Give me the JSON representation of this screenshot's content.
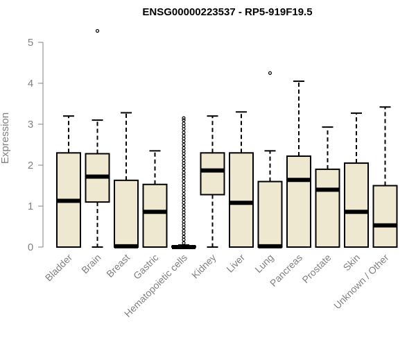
{
  "chart_data": {
    "type": "boxplot",
    "title": "ENSG00000223537 - RP5-919F19.5",
    "xlabel": "",
    "ylabel": "Expression",
    "ylim": [
      0,
      5.2
    ],
    "yticks": [
      0,
      1,
      2,
      3,
      4,
      5
    ],
    "box_fill": "#EEE8D0",
    "categories": [
      "Bladder",
      "Brain",
      "Breast",
      "Gastric",
      "Hematopoietic cells",
      "Kidney",
      "Liver",
      "Lung",
      "Pancreas",
      "Prostate",
      "Skin",
      "Unknown / Other"
    ],
    "boxes": [
      {
        "name": "Bladder",
        "whisker_low": 0,
        "q1": 0,
        "median": 1.13,
        "q3": 2.3,
        "whisker_high": 3.2,
        "outliers": []
      },
      {
        "name": "Brain",
        "whisker_low": 0,
        "q1": 1.1,
        "median": 1.72,
        "q3": 2.28,
        "whisker_high": 3.1,
        "outliers": [
          5.28
        ]
      },
      {
        "name": "Breast",
        "whisker_low": 0,
        "q1": 0,
        "median": 0.02,
        "q3": 1.63,
        "whisker_high": 3.28,
        "outliers": []
      },
      {
        "name": "Gastric",
        "whisker_low": 0,
        "q1": 0,
        "median": 0.86,
        "q3": 1.53,
        "whisker_high": 2.35,
        "outliers": []
      },
      {
        "name": "Hematopoietic cells",
        "whisker_low": 0,
        "q1": 0,
        "median": 0,
        "q3": 0.02,
        "whisker_high": 0.05,
        "outliers": [
          0.1,
          0.18,
          0.25,
          0.33,
          0.4,
          0.48,
          0.55,
          0.62,
          0.7,
          0.78,
          0.85,
          0.92,
          1.0,
          1.08,
          1.15,
          1.22,
          1.3,
          1.38,
          1.45,
          1.52,
          1.6,
          1.68,
          1.75,
          1.82,
          1.9,
          1.98,
          2.05,
          2.12,
          2.2,
          2.28,
          2.35,
          2.42,
          2.5,
          2.58,
          2.65,
          2.72,
          2.8,
          2.88,
          2.95,
          3.02,
          3.1,
          3.15
        ]
      },
      {
        "name": "Kidney",
        "whisker_low": 0,
        "q1": 1.28,
        "median": 1.87,
        "q3": 2.3,
        "whisker_high": 3.2,
        "outliers": []
      },
      {
        "name": "Liver",
        "whisker_low": 0,
        "q1": 0,
        "median": 1.08,
        "q3": 2.3,
        "whisker_high": 3.3,
        "outliers": []
      },
      {
        "name": "Lung",
        "whisker_low": 0,
        "q1": 0,
        "median": 0.02,
        "q3": 1.6,
        "whisker_high": 2.35,
        "outliers": [
          4.25
        ]
      },
      {
        "name": "Pancreas",
        "whisker_low": 0,
        "q1": 0,
        "median": 1.64,
        "q3": 2.22,
        "whisker_high": 4.05,
        "outliers": []
      },
      {
        "name": "Prostate",
        "whisker_low": 0,
        "q1": 0,
        "median": 1.4,
        "q3": 1.9,
        "whisker_high": 2.93,
        "outliers": []
      },
      {
        "name": "Skin",
        "whisker_low": 0,
        "q1": 0,
        "median": 0.86,
        "q3": 2.05,
        "whisker_high": 3.27,
        "outliers": []
      },
      {
        "name": "Unknown / Other",
        "whisker_low": 0,
        "q1": 0,
        "median": 0.53,
        "q3": 1.5,
        "whisker_high": 3.42,
        "outliers": []
      }
    ]
  }
}
